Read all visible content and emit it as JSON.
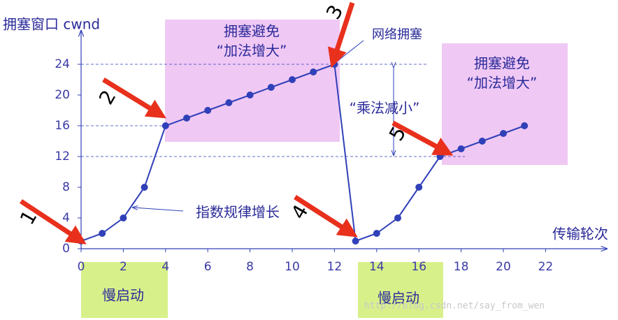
{
  "chart_data": {
    "type": "line",
    "y_label": "拥塞窗口 cwnd",
    "x_label": "传输轮次",
    "x": [
      0,
      1,
      2,
      3,
      4,
      5,
      6,
      7,
      8,
      9,
      10,
      11,
      12,
      13,
      14,
      15,
      16,
      17,
      18,
      19,
      20,
      21
    ],
    "series": [
      {
        "color": "#3040b8",
        "values": [
          1,
          2,
          4,
          8,
          16,
          17,
          18,
          19,
          20,
          21,
          22,
          23,
          24,
          1,
          2,
          4,
          8,
          12,
          13,
          14,
          15,
          16
        ]
      }
    ],
    "xlim": [
      0,
      25
    ],
    "ylim": [
      0,
      28
    ],
    "xticks": [
      0,
      2,
      4,
      6,
      8,
      10,
      12,
      14,
      16,
      18,
      20,
      22
    ],
    "yticks": [
      0,
      4,
      8,
      12,
      16,
      20,
      24
    ],
    "annotations": [
      "拥塞避免",
      "“加法增大”",
      "网络拥塞",
      "“乘法减小”",
      "指数规律增长",
      "拥塞避免",
      "“加法增大”",
      "慢启动",
      "慢启动",
      "1",
      "2",
      "3",
      "4",
      "5",
      "http://blog.csdn.net/say_from_wen"
    ]
  }
}
